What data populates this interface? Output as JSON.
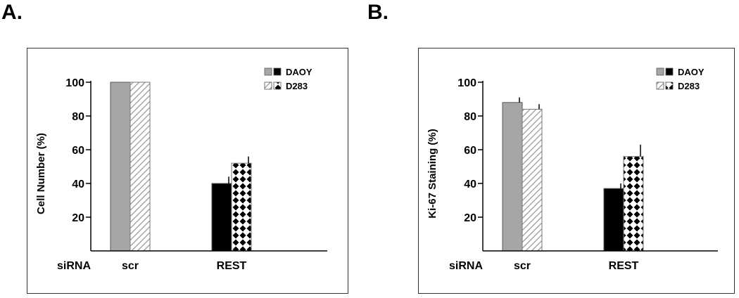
{
  "panels": [
    {
      "letter": "A.",
      "colors": {
        "daoy_scr": "#a6a6a6",
        "daoy_rest": "#000000",
        "d283_bg": "#ffffff"
      },
      "chart_data": {
        "type": "bar",
        "categories": [
          "scr",
          "REST"
        ],
        "x_row_label": "siRNA",
        "ylabel": "Cell Number (%)",
        "yticks": [
          20,
          40,
          60,
          80,
          100
        ],
        "ylim": [
          0,
          100
        ],
        "legend": [
          "DAOY",
          "D283"
        ],
        "legend_position": "top-right",
        "series": [
          {
            "name": "DAOY",
            "values": [
              100,
              40
            ],
            "errors": [
              0,
              4
            ]
          },
          {
            "name": "D283",
            "values": [
              100,
              52
            ],
            "errors": [
              0,
              4
            ]
          }
        ]
      }
    },
    {
      "letter": "B.",
      "colors": {
        "daoy_scr": "#a6a6a6",
        "daoy_rest": "#000000",
        "d283_bg": "#ffffff"
      },
      "chart_data": {
        "type": "bar",
        "categories": [
          "scr",
          "REST"
        ],
        "x_row_label": "siRNA",
        "ylabel": "Ki-67 Staining (%)",
        "yticks": [
          20,
          40,
          60,
          80,
          100
        ],
        "ylim": [
          0,
          100
        ],
        "legend": [
          "DAOY",
          "D283"
        ],
        "legend_position": "top-right",
        "series": [
          {
            "name": "DAOY",
            "values": [
              88,
              37
            ],
            "errors": [
              3,
              3
            ]
          },
          {
            "name": "D283",
            "values": [
              84,
              56
            ],
            "errors": [
              3,
              7
            ]
          }
        ]
      }
    }
  ]
}
